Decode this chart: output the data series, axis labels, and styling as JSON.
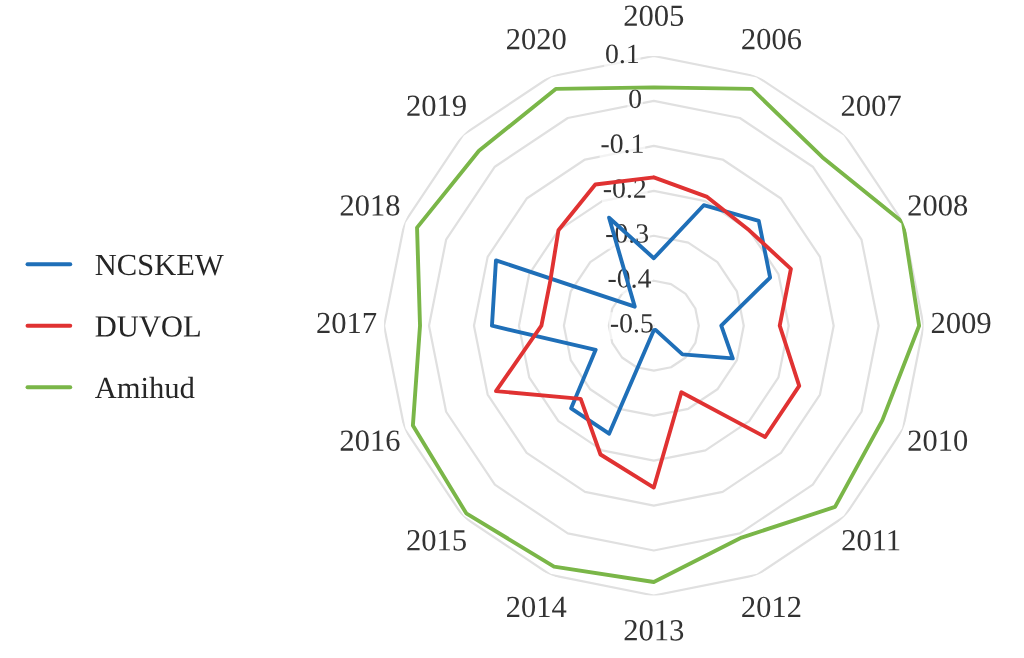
{
  "chart_data": {
    "type": "radar",
    "categories": [
      "2005",
      "2006",
      "2007",
      "2008",
      "2009",
      "2010",
      "2011",
      "2012",
      "2013",
      "2014",
      "2015",
      "2016",
      "2017",
      "2018",
      "2019",
      "2020"
    ],
    "series": [
      {
        "name": "NCSKEW",
        "color": "#1f6fb8",
        "values": [
          -0.35,
          -0.21,
          -0.17,
          -0.22,
          -0.35,
          -0.31,
          -0.41,
          -0.49,
          -0.49,
          -0.24,
          -0.24,
          -0.36,
          -0.14,
          -0.12,
          -0.44,
          -0.24
        ]
      },
      {
        "name": "DUVOL",
        "color": "#e03232",
        "values": [
          -0.17,
          -0.19,
          -0.2,
          -0.17,
          -0.22,
          -0.15,
          -0.15,
          -0.34,
          -0.14,
          -0.19,
          -0.27,
          -0.12,
          -0.25,
          -0.25,
          -0.2,
          -0.16
        ]
      },
      {
        "name": "Amihud",
        "color": "#7ab648",
        "values": [
          0.03,
          0.07,
          0.03,
          0.1,
          0.09,
          0.05,
          0.07,
          0.01,
          0.07,
          0.08,
          0.09,
          0.08,
          0.02,
          0.07,
          0.05,
          0.07
        ]
      }
    ],
    "ylim": [
      -0.5,
      0.1
    ],
    "yticks": [
      -0.5,
      -0.4,
      -0.3,
      -0.2,
      -0.1,
      0,
      0.1
    ],
    "grid": true,
    "legend": "left"
  }
}
